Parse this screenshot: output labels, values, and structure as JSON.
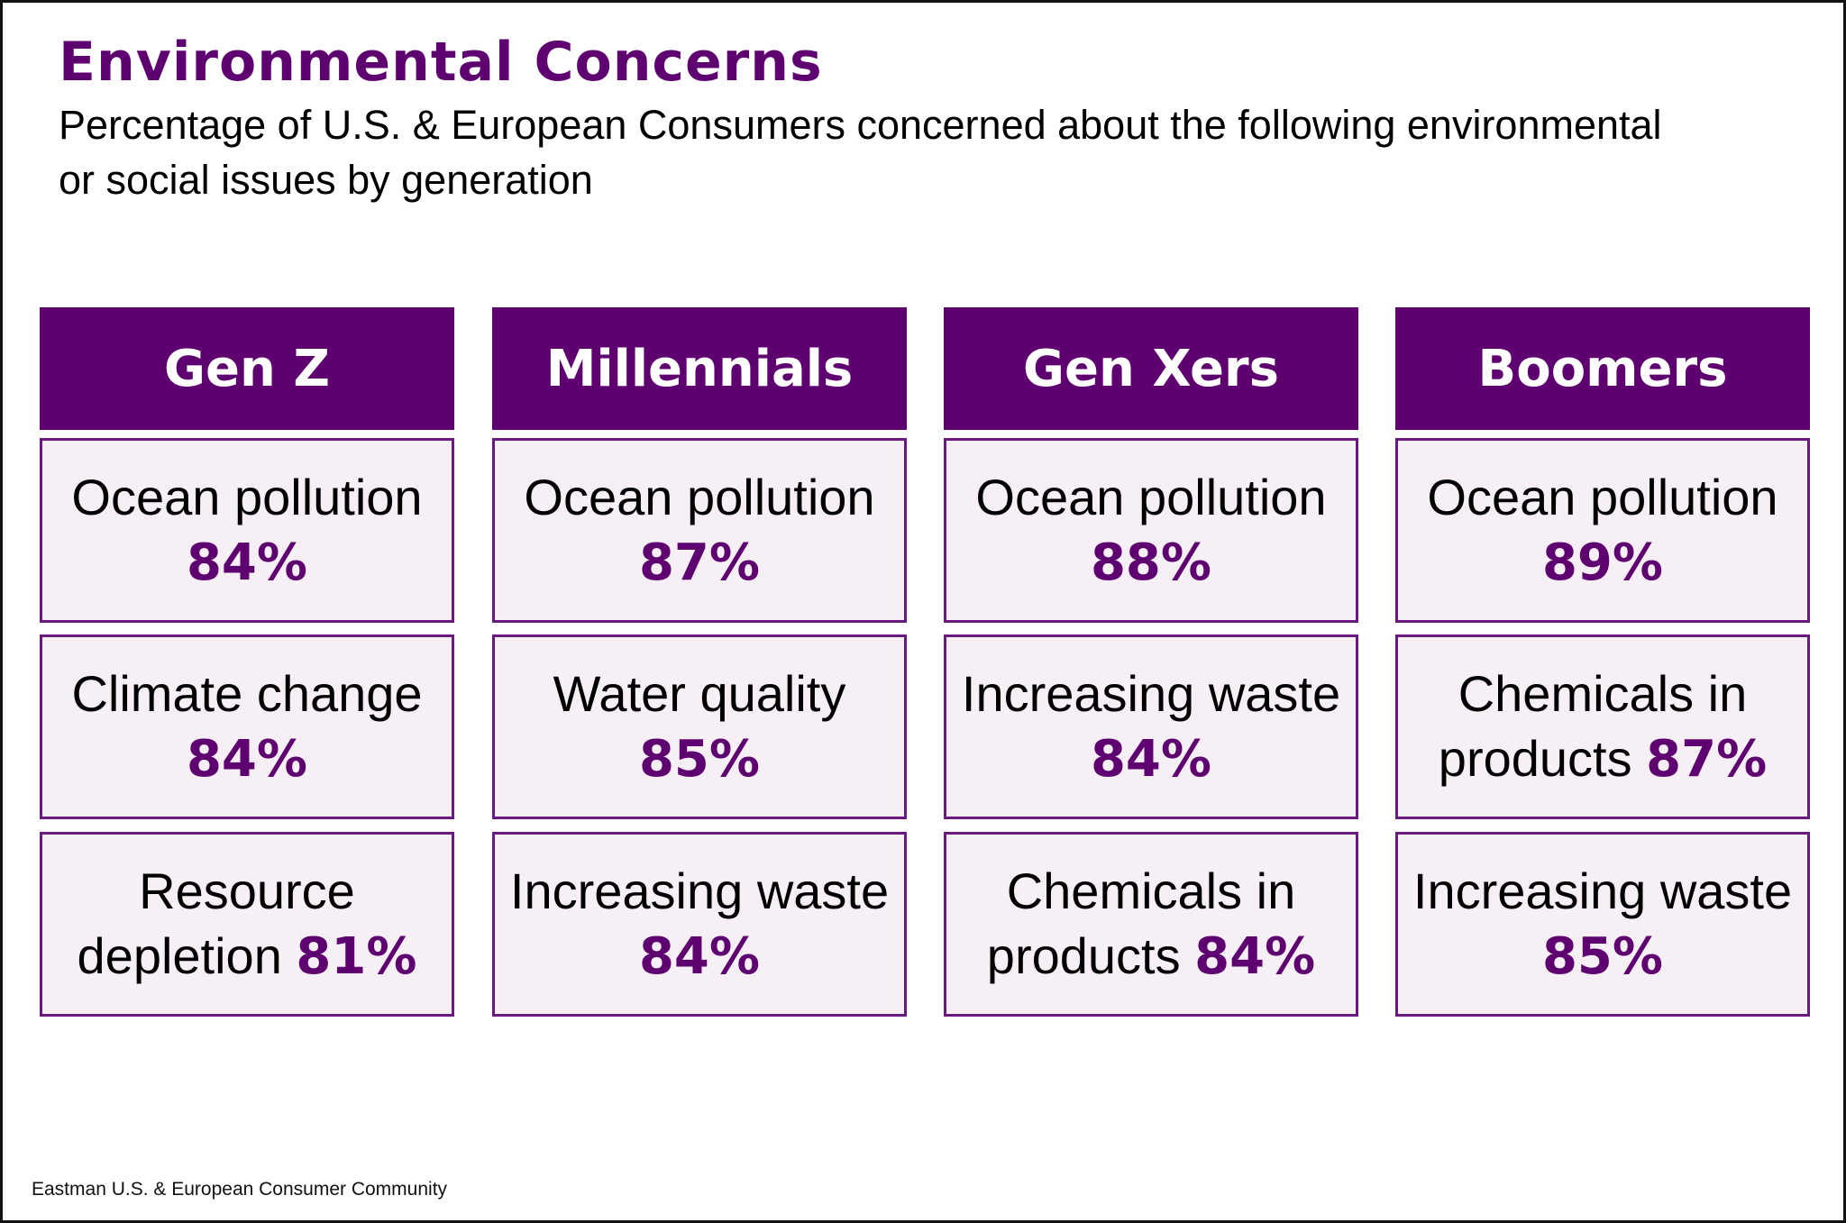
{
  "title": "Environmental Concerns",
  "subtitle": "Percentage of U.S. & European Consumers concerned about the following environmental or social issues by generation",
  "colors": {
    "accent": "#5f0070",
    "cell_bg": "#f6eff6"
  },
  "columns": [
    {
      "header": "Gen Z",
      "items": [
        {
          "label": "Ocean pollution",
          "value": "84%"
        },
        {
          "label": "Climate change",
          "value": "84%"
        },
        {
          "label": "Resource depletion",
          "value": "81%"
        }
      ]
    },
    {
      "header": "Millennials",
      "items": [
        {
          "label": "Ocean pollution",
          "value": "87%"
        },
        {
          "label": "Water quality",
          "value": "85%"
        },
        {
          "label": "Increasing waste",
          "value": "84%"
        }
      ]
    },
    {
      "header": "Gen Xers",
      "items": [
        {
          "label": "Ocean pollution",
          "value": "88%"
        },
        {
          "label": "Increasing waste",
          "value": "84%"
        },
        {
          "label": "Chemicals in products",
          "value": "84%"
        }
      ]
    },
    {
      "header": "Boomers",
      "items": [
        {
          "label": "Ocean pollution",
          "value": "89%"
        },
        {
          "label": "Chemicals in products",
          "value": "87%"
        },
        {
          "label": "Increasing waste",
          "value": "85%"
        }
      ]
    }
  ],
  "footer": "Eastman U.S. & European Consumer Community"
}
